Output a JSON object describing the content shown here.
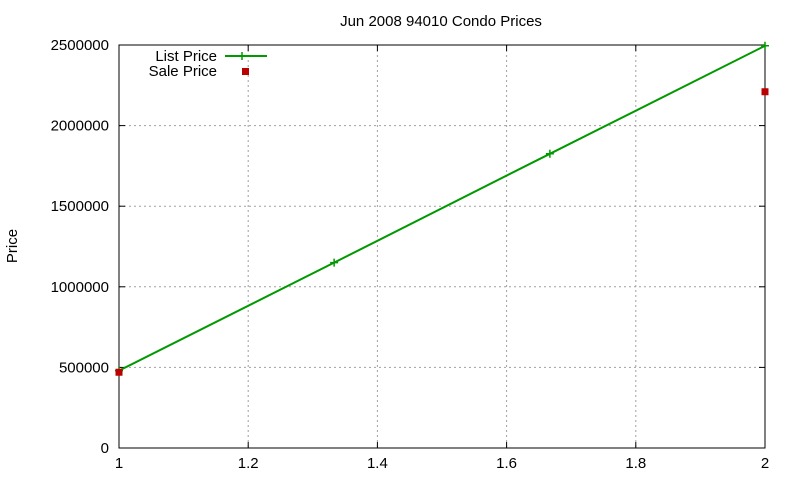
{
  "chart_data": {
    "type": "line",
    "title": "Jun 2008 94010 Condo Prices",
    "xlabel": "",
    "ylabel": "Price",
    "xlim": [
      1,
      2
    ],
    "ylim": [
      0,
      2500000
    ],
    "xticks": [
      1,
      1.2,
      1.4,
      1.6,
      1.8,
      2
    ],
    "xtick_labels": [
      "1",
      "1.2",
      "1.4",
      "1.6",
      "1.8",
      "2"
    ],
    "yticks": [
      0,
      500000,
      1000000,
      1500000,
      2000000,
      2500000
    ],
    "ytick_labels": [
      "0",
      "500000",
      "1000000",
      "1500000",
      "2000000",
      "2500000"
    ],
    "grid": true,
    "legend_position": "top-left",
    "series": [
      {
        "name": "List Price",
        "style": "linespoints",
        "color": "#009900",
        "x": [
          1,
          1.333,
          1.667,
          2
        ],
        "y": [
          480000,
          1150000,
          1825000,
          2495000
        ]
      },
      {
        "name": "Sale Price",
        "style": "points",
        "color": "#bb0000",
        "x": [
          1,
          2
        ],
        "y": [
          470000,
          2210000
        ]
      }
    ]
  }
}
